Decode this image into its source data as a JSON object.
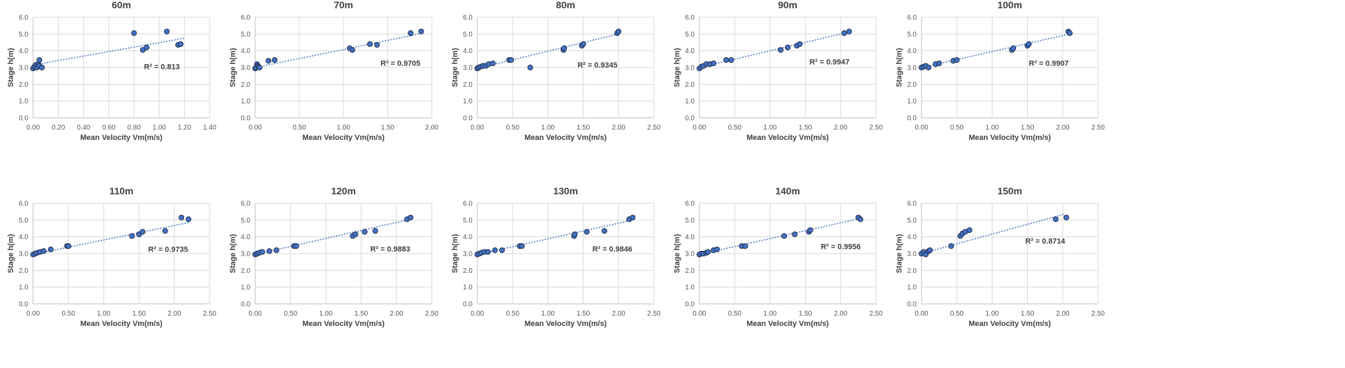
{
  "chart_data": [
    {
      "type": "scatter",
      "title": "60m",
      "xlabel": "Mean Velocity Vm(m/s)",
      "ylabel": "Stage h(m)",
      "xlim": [
        0,
        1.4
      ],
      "xticks": [
        0,
        0.2,
        0.4,
        0.6,
        0.8,
        1.0,
        1.2,
        1.4
      ],
      "xtick_labels": [
        "0.00",
        "0.20",
        "0.40",
        "0.60",
        "0.80",
        "1.00",
        "1.20",
        "1.40"
      ],
      "ylim": [
        0,
        6
      ],
      "yticks": [
        0,
        1,
        2,
        3,
        4,
        5,
        6
      ],
      "ytick_labels": [
        "0.0",
        "1.0",
        "2.0",
        "3.0",
        "4.0",
        "5.0",
        "6.0"
      ],
      "x": [
        0.0,
        0.01,
        0.02,
        0.03,
        0.04,
        0.05,
        0.05,
        0.07,
        0.8,
        0.87,
        0.9,
        1.06,
        1.15,
        1.17
      ],
      "y": [
        2.95,
        3.05,
        3.15,
        3.0,
        3.2,
        3.45,
        3.1,
        3.0,
        5.05,
        4.05,
        4.2,
        5.15,
        4.35,
        4.4
      ],
      "trendline": {
        "x": [
          0,
          1.2
        ],
        "y": [
          3.15,
          4.75
        ]
      },
      "r2": "R² = 0.813",
      "r2_pos": [
        0.88,
        2.9
      ]
    },
    {
      "type": "scatter",
      "title": "70m",
      "xlabel": "Mean Velocity Vm(m/s)",
      "ylabel": "Stage h(m)",
      "xlim": [
        0,
        2
      ],
      "xticks": [
        0,
        0.5,
        1,
        1.5,
        2
      ],
      "xtick_labels": [
        "0.00",
        "0.50",
        "1.00",
        "1.50",
        "2.00"
      ],
      "ylim": [
        0,
        6
      ],
      "yticks": [
        0,
        1,
        2,
        3,
        4,
        5,
        6
      ],
      "ytick_labels": [
        "0.0",
        "1.0",
        "2.0",
        "3.0",
        "4.0",
        "5.0",
        "6.0"
      ],
      "x": [
        0.0,
        0.01,
        0.02,
        0.03,
        0.04,
        0.05,
        0.15,
        0.22,
        1.07,
        1.1,
        1.3,
        1.38,
        1.76,
        1.88
      ],
      "y": [
        2.95,
        3.0,
        3.2,
        3.1,
        3.05,
        3.0,
        3.4,
        3.45,
        4.15,
        4.05,
        4.4,
        4.35,
        5.05,
        5.15
      ],
      "trendline": {
        "x": [
          0,
          1.9
        ],
        "y": [
          3.0,
          5.05
        ]
      },
      "r2": "R² = 0.9705",
      "r2_pos": [
        1.42,
        3.1
      ]
    },
    {
      "type": "scatter",
      "title": "80m",
      "xlabel": "Mean Velocity Vm(m/s)",
      "ylabel": "Stage h(m)",
      "xlim": [
        0,
        2.5
      ],
      "xticks": [
        0,
        0.5,
        1,
        1.5,
        2,
        2.5
      ],
      "xtick_labels": [
        "0.00",
        "0.50",
        "1.00",
        "1.50",
        "2.00",
        "2.50"
      ],
      "ylim": [
        0,
        6
      ],
      "yticks": [
        0,
        1,
        2,
        3,
        4,
        5,
        6
      ],
      "ytick_labels": [
        "0.0",
        "1.0",
        "2.0",
        "3.0",
        "4.0",
        "5.0",
        "6.0"
      ],
      "x": [
        0.0,
        0.02,
        0.05,
        0.08,
        0.12,
        0.16,
        0.22,
        0.45,
        0.48,
        0.75,
        1.22,
        1.23,
        1.48,
        1.5,
        1.98,
        2.0
      ],
      "y": [
        2.95,
        3.0,
        3.05,
        3.1,
        3.1,
        3.2,
        3.25,
        3.45,
        3.45,
        3.0,
        4.05,
        4.15,
        4.3,
        4.4,
        5.05,
        5.15
      ],
      "trendline": {
        "x": [
          0,
          2.0
        ],
        "y": [
          2.95,
          5.0
        ]
      },
      "r2": "R² = 0.9345",
      "r2_pos": [
        1.42,
        3.0
      ]
    },
    {
      "type": "scatter",
      "title": "90m",
      "xlabel": "Mean Velocity Vm(m/s)",
      "ylabel": "Stage h(m)",
      "xlim": [
        0,
        2.5
      ],
      "xticks": [
        0,
        0.5,
        1,
        1.5,
        2,
        2.5
      ],
      "xtick_labels": [
        "0.00",
        "0.50",
        "1.00",
        "1.50",
        "2.00",
        "2.50"
      ],
      "ylim": [
        0,
        6
      ],
      "yticks": [
        0,
        1,
        2,
        3,
        4,
        5,
        6
      ],
      "ytick_labels": [
        "0.0",
        "1.0",
        "2.0",
        "3.0",
        "4.0",
        "5.0",
        "6.0"
      ],
      "x": [
        0.0,
        0.03,
        0.06,
        0.1,
        0.15,
        0.2,
        0.38,
        0.45,
        1.15,
        1.25,
        1.38,
        1.42,
        2.05,
        2.12
      ],
      "y": [
        2.95,
        3.05,
        3.1,
        3.2,
        3.2,
        3.25,
        3.45,
        3.45,
        4.05,
        4.2,
        4.3,
        4.4,
        5.05,
        5.15
      ],
      "trendline": {
        "x": [
          0,
          2.1
        ],
        "y": [
          3.0,
          5.1
        ]
      },
      "r2": "R² = 0.9947",
      "r2_pos": [
        1.56,
        3.18
      ]
    },
    {
      "type": "scatter",
      "title": "100m",
      "xlabel": "Mean Velocity Vm(m/s)",
      "ylabel": "Stage h(m)",
      "xlim": [
        0,
        2.5
      ],
      "xticks": [
        0,
        0.5,
        1,
        1.5,
        2,
        2.5
      ],
      "xtick_labels": [
        "0.00",
        "0.50",
        "1.00",
        "1.50",
        "2.00",
        "2.50"
      ],
      "ylim": [
        0,
        6
      ],
      "yticks": [
        0,
        1,
        2,
        3,
        4,
        5,
        6
      ],
      "ytick_labels": [
        "0.0",
        "1.0",
        "2.0",
        "3.0",
        "4.0",
        "5.0",
        "6.0"
      ],
      "x": [
        0.0,
        0.03,
        0.06,
        0.1,
        0.2,
        0.25,
        0.45,
        0.5,
        1.28,
        1.3,
        1.5,
        1.52,
        2.08,
        2.1
      ],
      "y": [
        3.0,
        3.05,
        3.1,
        3.0,
        3.2,
        3.25,
        3.4,
        3.45,
        4.05,
        4.15,
        4.3,
        4.4,
        5.15,
        5.05
      ],
      "trendline": {
        "x": [
          0,
          2.1
        ],
        "y": [
          3.0,
          5.0
        ]
      },
      "r2": "R² = 0.9907",
      "r2_pos": [
        1.52,
        3.1
      ]
    },
    {
      "type": "scatter",
      "title": "110m",
      "xlabel": "Mean Velocity Vm(m/s)",
      "ylabel": "Stage h(m)",
      "xlim": [
        0,
        2.5
      ],
      "xticks": [
        0,
        0.5,
        1,
        1.5,
        2,
        2.5
      ],
      "xtick_labels": [
        "0.00",
        "0.50",
        "1.00",
        "1.50",
        "2.00",
        "2.50"
      ],
      "ylim": [
        0,
        6
      ],
      "yticks": [
        0,
        1,
        2,
        3,
        4,
        5,
        6
      ],
      "ytick_labels": [
        "0.0",
        "1.0",
        "2.0",
        "3.0",
        "4.0",
        "5.0",
        "6.0"
      ],
      "x": [
        0.0,
        0.03,
        0.06,
        0.1,
        0.15,
        0.25,
        0.48,
        0.5,
        1.4,
        1.5,
        1.55,
        1.87,
        2.1,
        2.2
      ],
      "y": [
        2.95,
        3.0,
        3.05,
        3.1,
        3.15,
        3.25,
        3.45,
        3.45,
        4.05,
        4.15,
        4.3,
        4.35,
        5.15,
        5.05
      ],
      "trendline": {
        "x": [
          0,
          2.2
        ],
        "y": [
          2.95,
          4.85
        ]
      },
      "r2": "R² = 0.9735",
      "r2_pos": [
        1.63,
        3.1
      ]
    },
    {
      "type": "scatter",
      "title": "120m",
      "xlabel": "Mean Velocity Vm(m/s)",
      "ylabel": "Stage h(m)",
      "xlim": [
        0,
        2.5
      ],
      "xticks": [
        0,
        0.5,
        1,
        1.5,
        2,
        2.5
      ],
      "xtick_labels": [
        "0.00",
        "0.50",
        "1.00",
        "1.50",
        "2.00",
        "2.50"
      ],
      "ylim": [
        0,
        6
      ],
      "yticks": [
        0,
        1,
        2,
        3,
        4,
        5,
        6
      ],
      "ytick_labels": [
        "0.0",
        "1.0",
        "2.0",
        "3.0",
        "4.0",
        "5.0",
        "6.0"
      ],
      "x": [
        0.0,
        0.03,
        0.06,
        0.1,
        0.2,
        0.3,
        0.55,
        0.58,
        1.38,
        1.42,
        1.55,
        1.7,
        2.15,
        2.2
      ],
      "y": [
        2.95,
        3.0,
        3.05,
        3.1,
        3.15,
        3.2,
        3.45,
        3.45,
        4.05,
        4.15,
        4.3,
        4.35,
        5.05,
        5.15
      ],
      "trendline": {
        "x": [
          0,
          2.2
        ],
        "y": [
          2.95,
          5.05
        ]
      },
      "r2": "R² = 0.9883",
      "r2_pos": [
        1.63,
        3.12
      ]
    },
    {
      "type": "scatter",
      "title": "130m",
      "xlabel": "Mean Velocity Vm(m/s)",
      "ylabel": "Stage h(m)",
      "xlim": [
        0,
        2.5
      ],
      "xticks": [
        0,
        0.5,
        1,
        1.5,
        2,
        2.5
      ],
      "xtick_labels": [
        "0.00",
        "0.50",
        "1.00",
        "1.50",
        "2.00",
        "2.50"
      ],
      "ylim": [
        0,
        6
      ],
      "yticks": [
        0,
        1,
        2,
        3,
        4,
        5,
        6
      ],
      "ytick_labels": [
        "0.0",
        "1.0",
        "2.0",
        "3.0",
        "4.0",
        "5.0",
        "6.0"
      ],
      "x": [
        0.0,
        0.03,
        0.06,
        0.1,
        0.15,
        0.25,
        0.35,
        0.6,
        0.63,
        1.37,
        1.38,
        1.55,
        1.8,
        2.15,
        2.2
      ],
      "y": [
        2.95,
        3.0,
        3.05,
        3.1,
        3.1,
        3.2,
        3.2,
        3.45,
        3.45,
        4.05,
        4.15,
        4.3,
        4.35,
        5.05,
        5.15
      ],
      "trendline": {
        "x": [
          0,
          2.2
        ],
        "y": [
          2.95,
          5.0
        ]
      },
      "r2": "R² = 0.9846",
      "r2_pos": [
        1.63,
        3.12
      ]
    },
    {
      "type": "scatter",
      "title": "140m",
      "xlabel": "Mean Velocity Vm(m/s)",
      "ylabel": "Stage h(m)",
      "xlim": [
        0,
        2.5
      ],
      "xticks": [
        0,
        0.5,
        1,
        1.5,
        2,
        2.5
      ],
      "xtick_labels": [
        "0.00",
        "0.50",
        "1.00",
        "1.50",
        "2.00",
        "2.50"
      ],
      "ylim": [
        0,
        6
      ],
      "yticks": [
        0,
        1,
        2,
        3,
        4,
        5,
        6
      ],
      "ytick_labels": [
        "0.0",
        "1.0",
        "2.0",
        "3.0",
        "4.0",
        "5.0",
        "6.0"
      ],
      "x": [
        0.0,
        0.03,
        0.06,
        0.1,
        0.12,
        0.2,
        0.25,
        0.6,
        0.65,
        1.2,
        1.35,
        1.55,
        1.57,
        2.25,
        2.28
      ],
      "y": [
        2.95,
        3.0,
        3.0,
        3.05,
        3.1,
        3.2,
        3.25,
        3.45,
        3.45,
        4.05,
        4.15,
        4.3,
        4.4,
        5.15,
        5.05
      ],
      "trendline": {
        "x": [
          0,
          2.28
        ],
        "y": [
          2.95,
          5.1
        ]
      },
      "r2": "R² = 0.9956",
      "r2_pos": [
        1.72,
        3.26
      ]
    },
    {
      "type": "scatter",
      "title": "150m",
      "xlabel": "Mean Velocity Vm(m/s)",
      "ylabel": "Stage h(m)",
      "xlim": [
        0,
        2.5
      ],
      "xticks": [
        0,
        0.5,
        1,
        1.5,
        2,
        2.5
      ],
      "xtick_labels": [
        "0.00",
        "0.50",
        "1.00",
        "1.50",
        "2.00",
        "2.50"
      ],
      "ylim": [
        0,
        6
      ],
      "yticks": [
        0,
        1,
        2,
        3,
        4,
        5,
        6
      ],
      "ytick_labels": [
        "0.0",
        "1.0",
        "2.0",
        "3.0",
        "4.0",
        "5.0",
        "6.0"
      ],
      "x": [
        0.0,
        0.03,
        0.06,
        0.1,
        0.12,
        0.42,
        0.55,
        0.58,
        0.62,
        0.68,
        1.9,
        2.05
      ],
      "y": [
        3.0,
        3.1,
        2.95,
        3.15,
        3.2,
        3.45,
        4.05,
        4.2,
        4.3,
        4.4,
        5.05,
        5.15
      ],
      "trendline": {
        "x": [
          0,
          2.02
        ],
        "y": [
          3.0,
          5.35
        ]
      },
      "r2": "R² = 0.8714",
      "r2_pos": [
        1.47,
        3.6
      ]
    }
  ]
}
